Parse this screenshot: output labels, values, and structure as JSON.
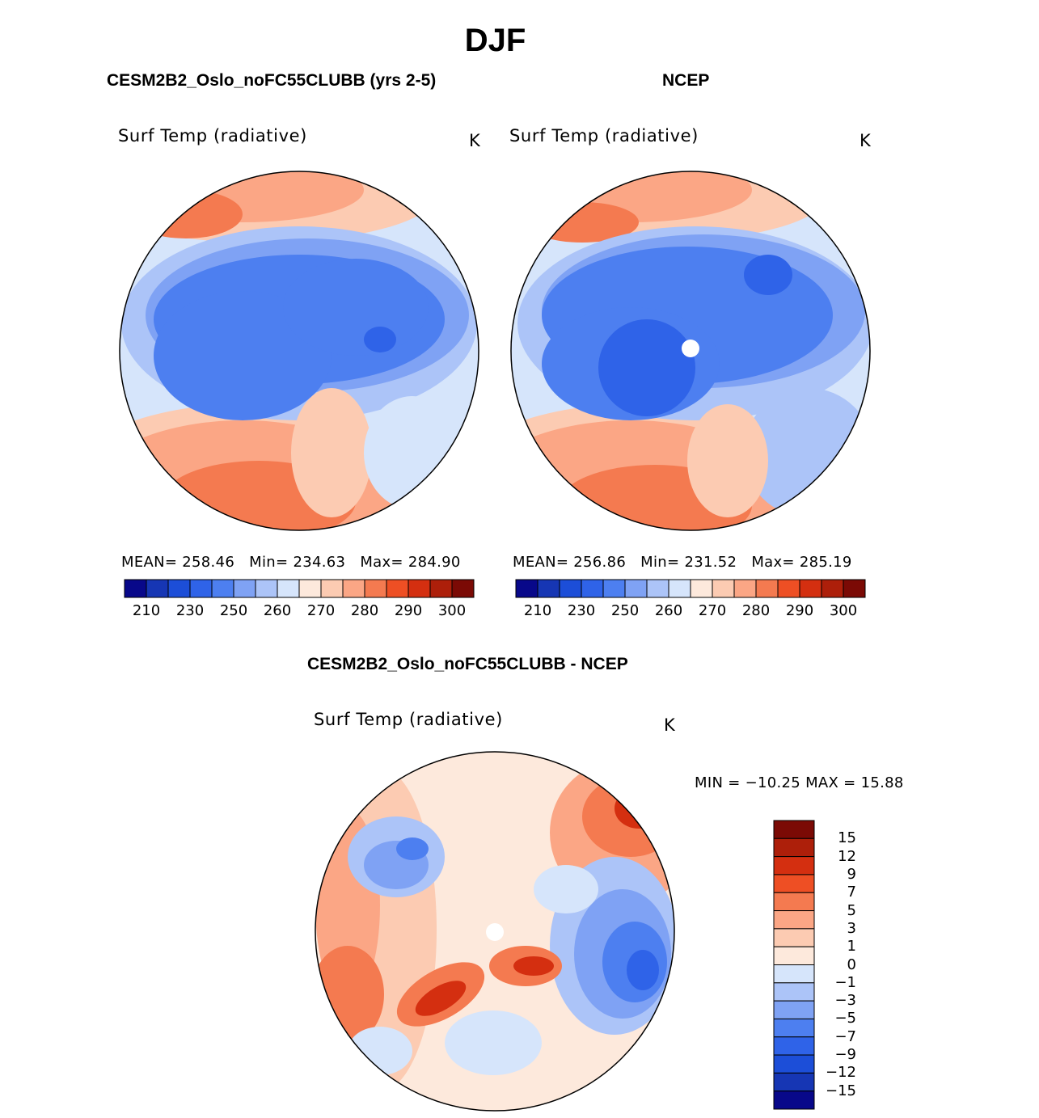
{
  "season": "DJF",
  "panels": [
    {
      "name": "model",
      "case_title": "CESM2B2_Oslo_noFC55CLUBB (yrs 2-5)",
      "variable": "Surf Temp (radiative)",
      "units": "K",
      "stats": {
        "mean_label": "MEAN=",
        "mean": "258.46",
        "min_label": "Min=",
        "min": "234.63",
        "max_label": "Max=",
        "max": "284.90"
      }
    },
    {
      "name": "obs",
      "case_title": "NCEP",
      "variable": "Surf Temp (radiative)",
      "units": "K",
      "stats": {
        "mean_label": "MEAN=",
        "mean": "256.86",
        "min_label": "Min=",
        "min": "231.52",
        "max_label": "Max=",
        "max": "285.19"
      },
      "missing_pole": true
    }
  ],
  "abs_colorbar": {
    "colors": [
      "#08088a",
      "#1636b4",
      "#1c4ed8",
      "#2f63e8",
      "#4d7ff0",
      "#7fa2f4",
      "#acc4f8",
      "#d6e5fb",
      "#fde9dc",
      "#fccbb2",
      "#fba685",
      "#f47a50",
      "#ee4f24",
      "#d42f10",
      "#ad1f0a",
      "#7b0a05"
    ],
    "labels": [
      "210",
      "230",
      "250",
      "260",
      "270",
      "280",
      "290",
      "300"
    ]
  },
  "diff": {
    "case_title": "CESM2B2_Oslo_noFC55CLUBB - NCEP",
    "variable": "Surf Temp (radiative)",
    "units": "K",
    "minmax_text": "MIN = −10.25 MAX =   15.88",
    "colorbar": {
      "colors": [
        "#7b0a05",
        "#ad1f0a",
        "#d42f10",
        "#ee4f24",
        "#f47a50",
        "#fba685",
        "#fccbb2",
        "#fde9dc",
        "#d6e5fb",
        "#acc4f8",
        "#7fa2f4",
        "#4d7ff0",
        "#2f63e8",
        "#1c4ed8",
        "#1636b4",
        "#08088a"
      ],
      "labels": [
        "15",
        "12",
        "9",
        "7",
        "5",
        "3",
        "1",
        "0",
        "−1",
        "−3",
        "−5",
        "−7",
        "−9",
        "−12",
        "−15"
      ]
    }
  }
}
